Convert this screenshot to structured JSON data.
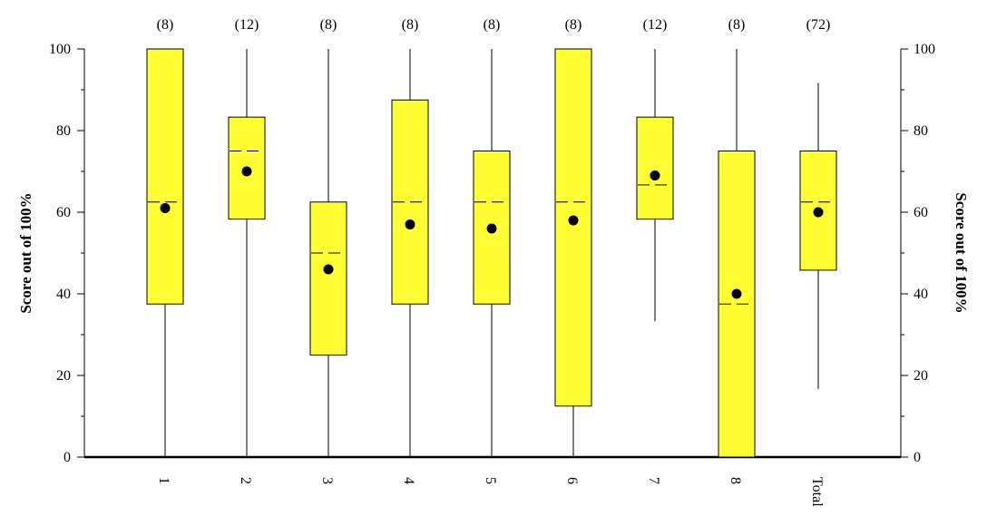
{
  "colors": {
    "box_fill": "#ffff33",
    "stroke": "#000000",
    "background": "#ffffff"
  },
  "chart_data": {
    "type": "boxplot",
    "ylabel_left": "Score out of 100%",
    "ylabel_right": "Score out of 100%",
    "ylim": [
      0,
      100
    ],
    "yticks": [
      0,
      20,
      40,
      60,
      80,
      100
    ],
    "grid": false,
    "categories": [
      "1",
      "2",
      "3",
      "4",
      "5",
      "6",
      "7",
      "8",
      "Total"
    ],
    "counts": [
      "(8)",
      "(12)",
      "(8)",
      "(8)",
      "(8)",
      "(8)",
      "(12)",
      "(8)",
      "(72)"
    ],
    "boxes": [
      {
        "category": "1",
        "min": 0,
        "q1": 37.5,
        "median": 62.5,
        "q3": 100,
        "max": 100,
        "mean": 61
      },
      {
        "category": "2",
        "min": 0,
        "q1": 58.3,
        "median": 75,
        "q3": 83.3,
        "max": 100,
        "mean": 70
      },
      {
        "category": "3",
        "min": 0,
        "q1": 25,
        "median": 50,
        "q3": 62.5,
        "max": 100,
        "mean": 46
      },
      {
        "category": "4",
        "min": 0,
        "q1": 37.5,
        "median": 62.5,
        "q3": 87.5,
        "max": 100,
        "mean": 57
      },
      {
        "category": "5",
        "min": 0,
        "q1": 37.5,
        "median": 62.5,
        "q3": 75,
        "max": 100,
        "mean": 56
      },
      {
        "category": "6",
        "min": 0,
        "q1": 12.5,
        "median": 62.5,
        "q3": 100,
        "max": 100,
        "mean": 58
      },
      {
        "category": "7",
        "min": 33.3,
        "q1": 58.3,
        "median": 66.7,
        "q3": 83.3,
        "max": 100,
        "mean": 69
      },
      {
        "category": "8",
        "min": 0,
        "q1": 0,
        "median": 37.5,
        "q3": 75,
        "max": 100,
        "mean": 40
      },
      {
        "category": "Total",
        "min": 16.7,
        "q1": 45.8,
        "median": 62.5,
        "q3": 75,
        "max": 91.7,
        "mean": 60
      }
    ]
  }
}
